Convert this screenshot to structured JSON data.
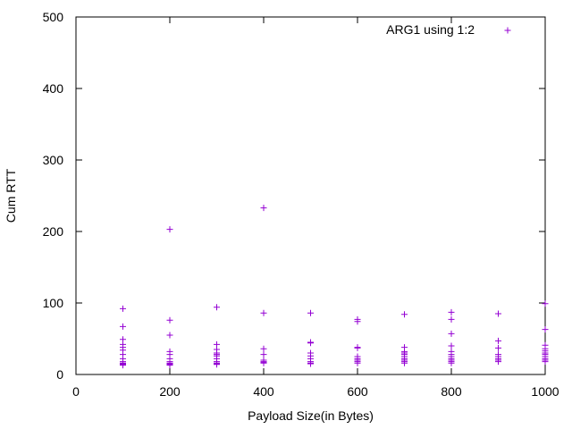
{
  "chart_data": {
    "type": "scatter",
    "title": "",
    "xlabel": "Payload Size(in Bytes)",
    "ylabel": "Cum RTT",
    "xlim": [
      0,
      1000
    ],
    "ylim": [
      0,
      500
    ],
    "x_ticks": [
      0,
      200,
      400,
      600,
      800,
      1000
    ],
    "y_ticks": [
      0,
      100,
      200,
      300,
      400,
      500
    ],
    "x_tick_labels": [
      "0",
      "200",
      "400",
      "600",
      "800",
      "1000"
    ],
    "y_tick_labels": [
      "0",
      "100",
      "200",
      "300",
      "400",
      "500"
    ],
    "grid": false,
    "legend_position": "top-right",
    "series": [
      {
        "name": "ARG1 using 1:2",
        "color": "#9400d3",
        "marker": "plus",
        "points": [
          [
            100,
            92
          ],
          [
            100,
            67
          ],
          [
            100,
            49
          ],
          [
            100,
            42
          ],
          [
            100,
            38
          ],
          [
            100,
            34
          ],
          [
            100,
            28
          ],
          [
            100,
            22
          ],
          [
            100,
            18
          ],
          [
            100,
            16
          ],
          [
            100,
            15
          ],
          [
            100,
            14
          ],
          [
            100,
            13
          ],
          [
            200,
            203
          ],
          [
            200,
            76
          ],
          [
            200,
            55
          ],
          [
            200,
            32
          ],
          [
            200,
            28
          ],
          [
            200,
            22
          ],
          [
            200,
            18
          ],
          [
            200,
            16
          ],
          [
            200,
            15
          ],
          [
            200,
            14
          ],
          [
            200,
            13
          ],
          [
            300,
            94
          ],
          [
            300,
            42
          ],
          [
            300,
            35
          ],
          [
            300,
            30
          ],
          [
            300,
            28
          ],
          [
            300,
            26
          ],
          [
            300,
            22
          ],
          [
            300,
            18
          ],
          [
            300,
            16
          ],
          [
            300,
            15
          ],
          [
            300,
            14
          ],
          [
            400,
            233
          ],
          [
            400,
            86
          ],
          [
            400,
            36
          ],
          [
            400,
            28
          ],
          [
            400,
            20
          ],
          [
            400,
            18
          ],
          [
            400,
            17
          ],
          [
            400,
            16
          ],
          [
            500,
            86
          ],
          [
            500,
            45
          ],
          [
            500,
            44
          ],
          [
            500,
            30
          ],
          [
            500,
            26
          ],
          [
            500,
            22
          ],
          [
            500,
            18
          ],
          [
            500,
            16
          ],
          [
            500,
            15
          ],
          [
            600,
            77
          ],
          [
            600,
            74
          ],
          [
            600,
            38
          ],
          [
            600,
            37
          ],
          [
            600,
            25
          ],
          [
            600,
            22
          ],
          [
            600,
            20
          ],
          [
            600,
            18
          ],
          [
            600,
            16
          ],
          [
            700,
            84
          ],
          [
            700,
            38
          ],
          [
            700,
            32
          ],
          [
            700,
            30
          ],
          [
            700,
            28
          ],
          [
            700,
            25
          ],
          [
            700,
            22
          ],
          [
            700,
            20
          ],
          [
            700,
            18
          ],
          [
            700,
            16
          ],
          [
            800,
            87
          ],
          [
            800,
            77
          ],
          [
            800,
            57
          ],
          [
            800,
            40
          ],
          [
            800,
            32
          ],
          [
            800,
            28
          ],
          [
            800,
            25
          ],
          [
            800,
            22
          ],
          [
            800,
            20
          ],
          [
            800,
            18
          ],
          [
            800,
            16
          ],
          [
            900,
            85
          ],
          [
            900,
            47
          ],
          [
            900,
            37
          ],
          [
            900,
            28
          ],
          [
            900,
            25
          ],
          [
            900,
            22
          ],
          [
            900,
            20
          ],
          [
            900,
            18
          ],
          [
            1000,
            99
          ],
          [
            1000,
            63
          ],
          [
            1000,
            41
          ],
          [
            1000,
            36
          ],
          [
            1000,
            33
          ],
          [
            1000,
            30
          ],
          [
            1000,
            28
          ],
          [
            1000,
            25
          ],
          [
            1000,
            22
          ],
          [
            1000,
            20
          ],
          [
            1000,
            18
          ]
        ]
      }
    ]
  }
}
